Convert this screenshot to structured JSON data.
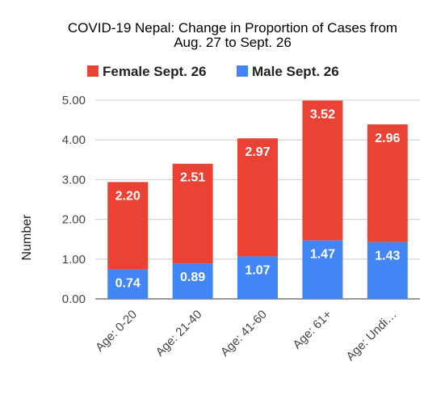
{
  "chart_data": {
    "type": "bar",
    "stacked": true,
    "title": "COVID-19 Nepal: Change in Proportion of Cases from Aug. 27 to Sept. 26",
    "title_lines": [
      "COVID-19 Nepal: Change in Proportion of Cases from",
      "Aug. 27 to Sept. 26"
    ],
    "xlabel": "",
    "ylabel": "Number",
    "categories": [
      "Age: 0-20",
      "Age: 21-40",
      "Age: 41-60",
      "Age: 61+",
      "Age: Undi…"
    ],
    "series": [
      {
        "name": "Male Sept. 26",
        "color": "#4285f4",
        "values": [
          0.74,
          0.89,
          1.07,
          1.47,
          1.43
        ]
      },
      {
        "name": "Female Sept. 26",
        "color": "#ea4335",
        "values": [
          2.2,
          2.51,
          2.97,
          3.52,
          2.96
        ]
      }
    ],
    "legend_order": [
      "Female Sept. 26",
      "Male Sept. 26"
    ],
    "legend_position": "top",
    "ylim": [
      0,
      5
    ],
    "yticks": [
      "0.00",
      "1.00",
      "2.00",
      "3.00",
      "4.00",
      "5.00"
    ],
    "grid": true
  }
}
